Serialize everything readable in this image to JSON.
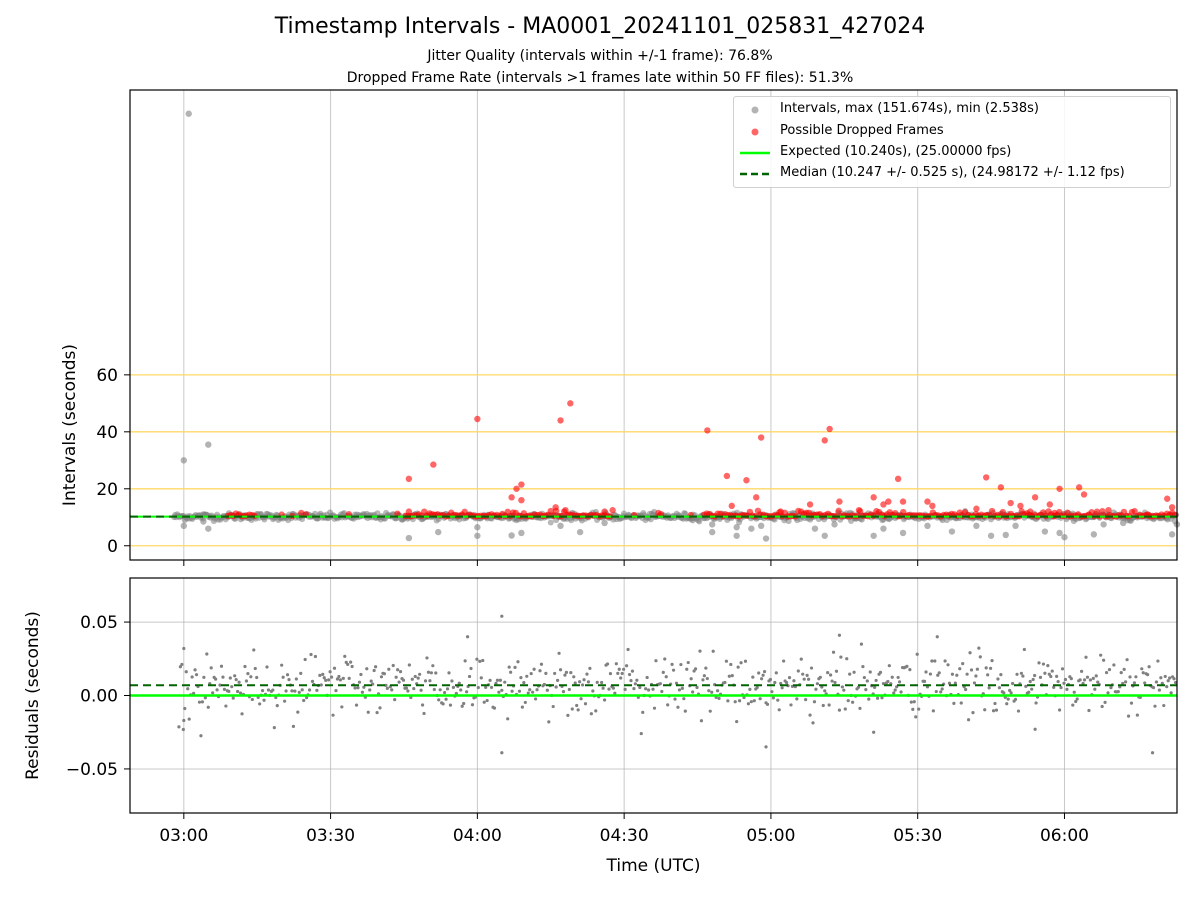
{
  "title": "Timestamp Intervals - MA0001_20241101_025831_427024",
  "subtitle_1": "Jitter Quality (intervals within +/-1 frame): 76.8%",
  "subtitle_2": "Dropped Frame Rate (intervals >1 frames late within 50 FF files): 51.3%",
  "colors": {
    "intervals": "#808080",
    "dropped": "#ff0000",
    "expected": "#00ff00",
    "median": "#006400",
    "threshold_lines": "#ffd966",
    "grid": "#b0b0b0"
  },
  "legend": {
    "intervals": "Intervals, max (151.674s), min (2.538s)",
    "dropped": "Possible Dropped Frames",
    "expected": "Expected (10.240s), (25.00000 fps)",
    "median": "Median (10.247 +/- 0.525 s), (24.98172 +/- 1.12 fps)"
  },
  "chart_data": [
    {
      "type": "scatter",
      "panel": "intervals",
      "xlabel": "",
      "ylabel": "Intervals (seconds)",
      "x_ticks": [
        "03:00",
        "03:30",
        "04:00",
        "04:30",
        "05:00",
        "05:30",
        "06:00"
      ],
      "xlim": [
        "02:49",
        "06:23"
      ],
      "y_ticks": [
        0,
        20,
        40,
        60
      ],
      "ylim": [
        -5,
        160
      ],
      "expected_interval": 10.24,
      "median_interval": 10.247,
      "horizontal_reference_lines": [
        0,
        20,
        40,
        60
      ],
      "grid": "vertical",
      "legend_position": "top-right",
      "series": [
        {
          "name": "Intervals, max (151.674s), min (2.538s)",
          "points": [
            [
              "03:00",
              30.0
            ],
            [
              "03:01",
              151.674
            ],
            [
              "03:05",
              35.5
            ],
            [
              "03:00",
              7.0
            ],
            [
              "03:04",
              8.5
            ],
            [
              "03:05",
              6.0
            ],
            [
              "03:04",
              11.0
            ],
            [
              "03:46",
              2.7
            ],
            [
              "03:52",
              4.8
            ],
            [
              "04:00",
              3.5
            ],
            [
              "04:00",
              6.5
            ],
            [
              "04:07",
              3.6
            ],
            [
              "04:09",
              4.5
            ],
            [
              "04:17",
              7.0
            ],
            [
              "04:21",
              4.8
            ],
            [
              "04:26",
              8.0
            ],
            [
              "04:44",
              9.0
            ],
            [
              "04:48",
              4.8
            ],
            [
              "04:48",
              7.5
            ],
            [
              "04:53",
              3.5
            ],
            [
              "04:53",
              6.5
            ],
            [
              "04:56",
              6.0
            ],
            [
              "04:59",
              2.538
            ],
            [
              "04:58",
              7.0
            ],
            [
              "05:09",
              6.0
            ],
            [
              "05:11",
              3.5
            ],
            [
              "05:13",
              7.5
            ],
            [
              "05:21",
              3.5
            ],
            [
              "05:23",
              6.0
            ],
            [
              "05:27",
              4.5
            ],
            [
              "05:32",
              7.0
            ],
            [
              "05:37",
              5.0
            ],
            [
              "05:42",
              7.0
            ],
            [
              "05:45",
              3.5
            ],
            [
              "05:48",
              3.8
            ],
            [
              "05:50",
              7.0
            ],
            [
              "05:56",
              5.0
            ],
            [
              "05:59",
              4.5
            ],
            [
              "06:00",
              3.0
            ],
            [
              "06:06",
              4.0
            ],
            [
              "06:08",
              7.5
            ],
            [
              "06:12",
              8.0
            ],
            [
              "06:22",
              4.0
            ],
            [
              "06:23",
              7.5
            ]
          ]
        },
        {
          "name": "Possible Dropped Frames",
          "points": [
            [
              "03:24",
              11.5
            ],
            [
              "03:46",
              23.5
            ],
            [
              "03:46",
              12.0
            ],
            [
              "03:51",
              28.5
            ],
            [
              "04:00",
              44.5
            ],
            [
              "04:07",
              17.0
            ],
            [
              "04:08",
              20.0
            ],
            [
              "04:09",
              21.5
            ],
            [
              "04:09",
              16.0
            ],
            [
              "04:16",
              13.5
            ],
            [
              "04:17",
              44.0
            ],
            [
              "04:18",
              12.5
            ],
            [
              "04:19",
              50.0
            ],
            [
              "04:26",
              12.0
            ],
            [
              "04:37",
              11.5
            ],
            [
              "04:47",
              40.5
            ],
            [
              "04:51",
              24.5
            ],
            [
              "04:52",
              14.0
            ],
            [
              "04:55",
              23.0
            ],
            [
              "04:57",
              17.0
            ],
            [
              "04:58",
              38.0
            ],
            [
              "05:02",
              12.0
            ],
            [
              "05:08",
              14.5
            ],
            [
              "05:11",
              37.0
            ],
            [
              "05:12",
              41.0
            ],
            [
              "05:14",
              15.5
            ],
            [
              "05:18",
              12.5
            ],
            [
              "05:21",
              17.0
            ],
            [
              "05:23",
              14.5
            ],
            [
              "05:24",
              15.5
            ],
            [
              "05:26",
              23.5
            ],
            [
              "05:27",
              15.5
            ],
            [
              "05:32",
              15.5
            ],
            [
              "05:33",
              14.0
            ],
            [
              "05:42",
              13.0
            ],
            [
              "05:44",
              24.0
            ],
            [
              "05:47",
              20.5
            ],
            [
              "05:49",
              15.0
            ],
            [
              "05:51",
              14.0
            ],
            [
              "05:53",
              12.0
            ],
            [
              "05:54",
              17.0
            ],
            [
              "05:57",
              14.5
            ],
            [
              "05:58",
              11.5
            ],
            [
              "05:59",
              20.0
            ],
            [
              "06:03",
              20.5
            ],
            [
              "06:04",
              18.0
            ],
            [
              "06:09",
              12.5
            ],
            [
              "06:17",
              11.0
            ],
            [
              "06:21",
              16.5
            ],
            [
              "06:22",
              13.5
            ]
          ],
          "dense_band": {
            "x_from": "03:09",
            "x_to": "06:23",
            "y": 10.3
          }
        },
        {
          "name": "Expected (10.240s), (25.00000 fps)",
          "y": 10.24
        },
        {
          "name": "Median (10.247 +/- 0.525 s), (24.98172 +/- 1.12 fps)",
          "y": 10.247
        }
      ]
    },
    {
      "type": "scatter",
      "panel": "residuals",
      "xlabel": "Time (UTC)",
      "ylabel": "Residuals (seconds)",
      "x_ticks": [
        "03:00",
        "03:30",
        "04:00",
        "04:30",
        "05:00",
        "05:30",
        "06:00"
      ],
      "xlim": [
        "02:49",
        "06:23"
      ],
      "y_ticks": [
        0.05,
        0.0,
        -0.05
      ],
      "y_tick_labels": [
        "0.05",
        "0.00",
        "−0.05"
      ],
      "ylim": [
        -0.08,
        0.08
      ],
      "grid": "both",
      "expected_residual": 0.0,
      "median_residual": 0.007,
      "residual_spread_sd": 0.012,
      "outliers": [
        [
          "03:00",
          0.032
        ],
        [
          "03:00",
          -0.017
        ],
        [
          "03:58",
          0.04
        ],
        [
          "04:05",
          0.054
        ],
        [
          "04:05",
          -0.039
        ],
        [
          "04:59",
          -0.035
        ],
        [
          "05:14",
          0.041
        ],
        [
          "05:21",
          -0.025
        ],
        [
          "05:34",
          0.04
        ],
        [
          "05:54",
          -0.023
        ],
        [
          "06:18",
          -0.039
        ]
      ]
    }
  ]
}
